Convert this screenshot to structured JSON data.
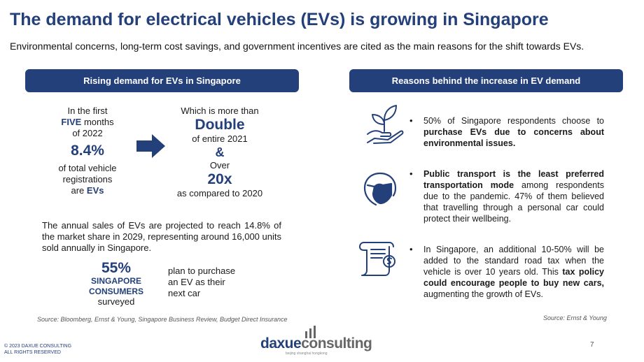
{
  "header": {
    "title": "The demand for electrical vehicles (EVs) is growing in Singapore",
    "subtitle": "Environmental concerns, long-term cost savings, and government incentives are cited as the main reasons for the shift towards EVs."
  },
  "left": {
    "banner": "Rising demand for EVs in Singapore",
    "stat1": {
      "line1": "In the first",
      "five": "FIVE",
      "months": " months",
      "year": "of 2022",
      "value": "8.4%",
      "desc1": "of total vehicle",
      "desc2": "registrations",
      "desc3_pre": "are ",
      "desc3_ev": "EVs"
    },
    "stat2": {
      "line1": "Which is more than",
      "double": "Double",
      "of2021": "of entire 2021",
      "amp": "&",
      "over": "Over",
      "value": "20x",
      "compared": "as compared to 2020"
    },
    "paragraph": "The annual sales of EVs are projected to reach 14.8% of the market share in 2029, representing around 16,000 units sold annually in Singapore.",
    "consumers": {
      "percent": "55%",
      "label1": "SINGAPORE",
      "label2": "CONSUMERS",
      "label3": "surveyed",
      "plan1": "plan to purchase",
      "plan2": "an EV as their",
      "plan3": "next car"
    },
    "source": "Source: Bloomberg, Ernst & Young, Singapore Business Review, Budget Direct Insurance"
  },
  "right": {
    "banner": "Reasons behind the increase in EV demand",
    "bullets": [
      {
        "icon": "plant-hand-icon",
        "pre": "50% of Singapore respondents choose to ",
        "bold": "purchase EVs due to concerns about environmental issues.",
        "post": ""
      },
      {
        "icon": "mask-face-icon",
        "pre": "",
        "bold": "Public transport is the least preferred transportation mode",
        "post": " among respondents due to the pandemic. 47% of them believed that travelling through a personal car could protect their wellbeing."
      },
      {
        "icon": "tax-document-icon",
        "pre": "In Singapore, an additional 10-50% will be added to the standard road tax when the vehicle is over 10 years old. This ",
        "bold": "tax policy could encourage people to buy new cars,",
        "post": " augmenting the growth of EVs."
      }
    ],
    "source": "Source: Ernst & Young"
  },
  "footer": {
    "copyright1": "© 2023 DAXUE CONSULTING",
    "copyright2": "ALL RIGHTS RESERVED",
    "logo_daxue": "daxue",
    "logo_consulting": "consulting",
    "logo_tagline": "beijing shanghai hongkong",
    "page_number": "7"
  },
  "colors": {
    "brand": "#24407a",
    "text": "#1a1a1a"
  }
}
